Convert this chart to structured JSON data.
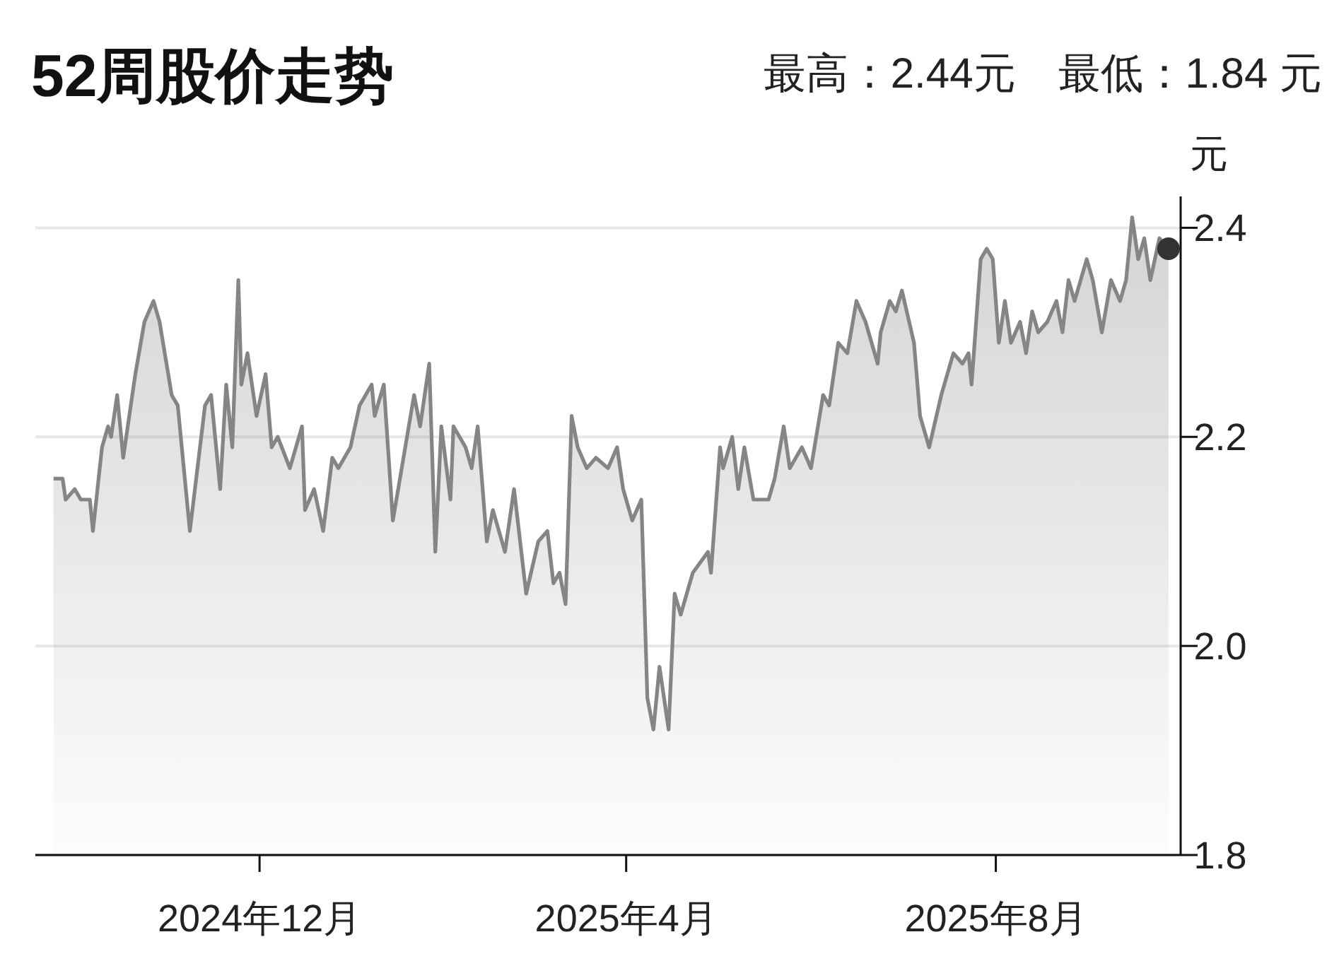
{
  "chart_data": {
    "type": "area",
    "title": "52周股价走势",
    "subtitle": "最高：2.44元　最低：1.84 元",
    "ylabel": "元",
    "xlim": [
      "2024-09-18",
      "2025-10-01"
    ],
    "xticks": [
      {
        "value": "2024-12-01",
        "label": "2024年12月"
      },
      {
        "value": "2025-04-01",
        "label": "2025年4月"
      },
      {
        "value": "2025-08-01",
        "label": "2025年8月"
      }
    ],
    "ylim": [
      1.8,
      2.43
    ],
    "yticks": [
      {
        "value": 1.8,
        "label": "1.8"
      },
      {
        "value": 2.0,
        "label": "2.0"
      },
      {
        "value": 2.2,
        "label": "2.2"
      },
      {
        "value": 2.4,
        "label": "2.4"
      }
    ],
    "grid": "y",
    "series": [
      {
        "color": "#858585",
        "x": [
          "2024-09-24",
          "2024-09-27",
          "2024-09-28",
          "2024-10-01",
          "2024-10-03",
          "2024-10-06",
          "2024-10-07",
          "2024-10-10",
          "2024-10-12",
          "2024-10-13",
          "2024-10-15",
          "2024-10-17",
          "2024-10-21",
          "2024-10-24",
          "2024-10-27",
          "2024-10-29",
          "2024-11-02",
          "2024-11-04",
          "2024-11-08",
          "2024-11-13",
          "2024-11-15",
          "2024-11-18",
          "2024-11-20",
          "2024-11-22",
          "2024-11-24",
          "2024-11-25",
          "2024-11-27",
          "2024-11-30",
          "2024-12-03",
          "2024-12-05",
          "2024-12-07",
          "2024-12-11",
          "2024-12-15",
          "2024-12-16",
          "2024-12-19",
          "2024-12-22",
          "2024-12-25",
          "2024-12-27",
          "2024-12-31",
          "2025-01-03",
          "2025-01-07",
          "2025-01-08",
          "2025-01-11",
          "2025-01-14",
          "2025-01-21",
          "2025-01-23",
          "2025-01-26",
          "2025-01-28",
          "2025-01-30",
          "2025-02-02",
          "2025-02-03",
          "2025-02-07",
          "2025-02-09",
          "2025-02-11",
          "2025-02-14",
          "2025-02-16",
          "2025-02-20",
          "2025-02-23",
          "2025-02-27",
          "2025-03-03",
          "2025-03-06",
          "2025-03-08",
          "2025-03-10",
          "2025-03-12",
          "2025-03-14",
          "2025-03-16",
          "2025-03-19",
          "2025-03-22",
          "2025-03-26",
          "2025-03-29",
          "2025-03-31",
          "2025-04-03",
          "2025-04-06",
          "2025-04-08",
          "2025-04-10",
          "2025-04-12",
          "2025-04-15",
          "2025-04-17",
          "2025-04-19",
          "2025-04-23",
          "2025-04-28",
          "2025-04-29",
          "2025-05-02",
          "2025-05-03",
          "2025-05-06",
          "2025-05-08",
          "2025-05-10",
          "2025-05-13",
          "2025-05-18",
          "2025-05-20",
          "2025-05-23",
          "2025-05-25",
          "2025-05-29",
          "2025-06-01",
          "2025-06-05",
          "2025-06-07",
          "2025-06-10",
          "2025-06-13",
          "2025-06-16",
          "2025-06-19",
          "2025-06-23",
          "2025-06-24",
          "2025-06-27",
          "2025-06-29",
          "2025-07-01",
          "2025-07-05",
          "2025-07-07",
          "2025-07-10",
          "2025-07-14",
          "2025-07-18",
          "2025-07-21",
          "2025-07-23",
          "2025-07-24",
          "2025-07-27",
          "2025-07-29",
          "2025-07-31",
          "2025-08-02",
          "2025-08-04",
          "2025-08-06",
          "2025-08-09",
          "2025-08-11",
          "2025-08-13",
          "2025-08-15",
          "2025-08-18",
          "2025-08-21",
          "2025-08-23",
          "2025-08-25",
          "2025-08-27",
          "2025-08-31",
          "2025-09-02",
          "2025-09-05",
          "2025-09-08",
          "2025-09-11",
          "2025-09-13",
          "2025-09-15",
          "2025-09-17",
          "2025-09-19",
          "2025-09-21",
          "2025-09-24",
          "2025-09-27"
        ],
        "values": [
          2.16,
          2.16,
          2.14,
          2.15,
          2.14,
          2.14,
          2.11,
          2.19,
          2.21,
          2.2,
          2.24,
          2.18,
          2.26,
          2.31,
          2.33,
          2.31,
          2.24,
          2.23,
          2.11,
          2.23,
          2.24,
          2.15,
          2.25,
          2.19,
          2.35,
          2.25,
          2.28,
          2.22,
          2.26,
          2.19,
          2.2,
          2.17,
          2.21,
          2.13,
          2.15,
          2.11,
          2.18,
          2.17,
          2.19,
          2.23,
          2.25,
          2.22,
          2.25,
          2.12,
          2.24,
          2.21,
          2.27,
          2.09,
          2.21,
          2.14,
          2.21,
          2.19,
          2.17,
          2.21,
          2.1,
          2.13,
          2.09,
          2.15,
          2.05,
          2.1,
          2.11,
          2.06,
          2.07,
          2.04,
          2.22,
          2.19,
          2.17,
          2.18,
          2.17,
          2.19,
          2.15,
          2.12,
          2.14,
          1.95,
          1.92,
          1.98,
          1.92,
          2.05,
          2.03,
          2.07,
          2.09,
          2.07,
          2.19,
          2.17,
          2.2,
          2.15,
          2.19,
          2.14,
          2.14,
          2.16,
          2.21,
          2.17,
          2.19,
          2.17,
          2.24,
          2.23,
          2.29,
          2.28,
          2.33,
          2.31,
          2.27,
          2.3,
          2.33,
          2.32,
          2.34,
          2.29,
          2.22,
          2.19,
          2.24,
          2.28,
          2.27,
          2.28,
          2.25,
          2.37,
          2.38,
          2.37,
          2.29,
          2.33,
          2.29,
          2.31,
          2.28,
          2.32,
          2.3,
          2.31,
          2.33,
          2.3,
          2.35,
          2.33,
          2.37,
          2.35,
          2.3,
          2.35,
          2.33,
          2.35,
          2.41,
          2.37,
          2.39,
          2.35,
          2.39,
          2.38
        ]
      },
      {
        "type": "scatter",
        "color": "#333333",
        "marker": "circle",
        "x": [
          "2025-09-27"
        ],
        "values": [
          2.38
        ]
      }
    ]
  }
}
